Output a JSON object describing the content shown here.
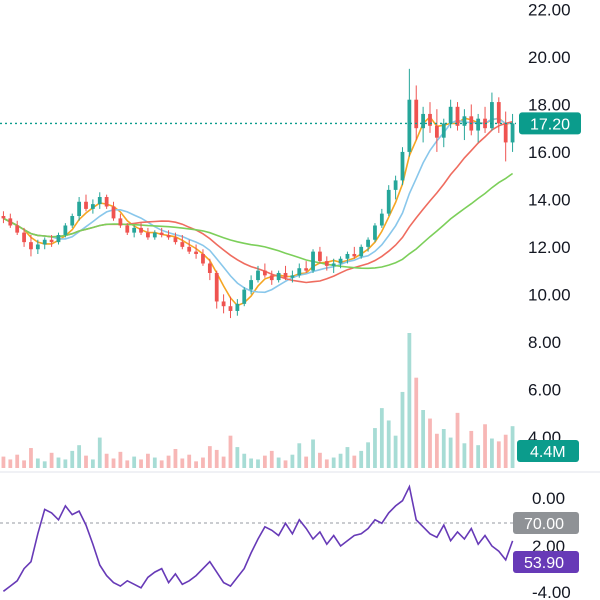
{
  "chart_data": [
    {
      "type": "candlestick",
      "panel": "price",
      "y_ticks": [
        "22.00",
        "20.00",
        "18.00",
        "16.00",
        "14.00",
        "12.00",
        "10.00",
        "8.00",
        "6.00",
        "4.00"
      ],
      "ylim": [
        2.6,
        22.4
      ],
      "last_price": 17.2,
      "last_price_label": "17.20",
      "price_line_style": "dotted",
      "up_color": "#26a69a",
      "down_color": "#ef5350",
      "candles": [
        [
          13.3,
          13.5,
          13.0,
          13.2
        ],
        [
          13.2,
          13.4,
          12.8,
          12.9
        ],
        [
          12.9,
          13.1,
          12.5,
          12.6
        ],
        [
          12.6,
          12.8,
          12.0,
          12.2
        ],
        [
          12.2,
          12.5,
          11.6,
          11.9
        ],
        [
          11.9,
          12.3,
          11.7,
          12.1
        ],
        [
          12.1,
          12.4,
          11.9,
          12.3
        ],
        [
          12.3,
          12.5,
          12.0,
          12.2
        ],
        [
          12.2,
          12.6,
          12.1,
          12.5
        ],
        [
          12.5,
          13.0,
          12.4,
          12.9
        ],
        [
          12.9,
          13.4,
          12.8,
          13.3
        ],
        [
          13.3,
          14.1,
          13.1,
          13.9
        ],
        [
          13.9,
          14.2,
          13.5,
          13.6
        ],
        [
          13.6,
          14.0,
          13.4,
          13.8
        ],
        [
          13.8,
          14.3,
          13.6,
          14.1
        ],
        [
          14.1,
          14.2,
          13.6,
          13.7
        ],
        [
          13.7,
          13.9,
          13.1,
          13.2
        ],
        [
          13.2,
          13.4,
          12.8,
          12.9
        ],
        [
          12.9,
          13.0,
          12.5,
          12.6
        ],
        [
          12.6,
          12.9,
          12.4,
          12.8
        ],
        [
          12.8,
          13.0,
          12.5,
          12.6
        ],
        [
          12.6,
          12.8,
          12.3,
          12.4
        ],
        [
          12.4,
          12.7,
          12.3,
          12.6
        ],
        [
          12.6,
          12.8,
          12.4,
          12.5
        ],
        [
          12.5,
          12.7,
          12.3,
          12.4
        ],
        [
          12.4,
          12.6,
          12.1,
          12.2
        ],
        [
          12.2,
          12.5,
          11.9,
          12.0
        ],
        [
          12.0,
          12.3,
          11.7,
          11.8
        ],
        [
          11.8,
          12.1,
          11.5,
          11.7
        ],
        [
          11.7,
          11.9,
          11.2,
          11.3
        ],
        [
          11.3,
          11.5,
          10.6,
          10.9
        ],
        [
          10.9,
          11.0,
          9.4,
          9.7
        ],
        [
          9.7,
          10.0,
          9.2,
          9.5
        ],
        [
          9.5,
          9.9,
          9.0,
          9.3
        ],
        [
          9.3,
          9.8,
          9.1,
          9.6
        ],
        [
          9.6,
          10.3,
          9.5,
          10.2
        ],
        [
          10.2,
          10.8,
          10.0,
          10.6
        ],
        [
          10.6,
          11.2,
          10.5,
          11.0
        ],
        [
          11.0,
          11.3,
          10.7,
          10.8
        ],
        [
          10.8,
          11.0,
          10.4,
          10.6
        ],
        [
          10.6,
          11.0,
          10.5,
          10.9
        ],
        [
          10.9,
          11.2,
          10.6,
          10.7
        ],
        [
          10.7,
          11.0,
          10.5,
          10.8
        ],
        [
          10.8,
          11.3,
          10.7,
          11.1
        ],
        [
          11.1,
          11.4,
          10.9,
          11.0
        ],
        [
          11.0,
          11.9,
          10.9,
          11.8
        ],
        [
          11.8,
          12.0,
          11.3,
          11.4
        ],
        [
          11.4,
          11.6,
          11.0,
          11.2
        ],
        [
          11.2,
          11.5,
          10.9,
          11.3
        ],
        [
          11.3,
          11.6,
          11.1,
          11.5
        ],
        [
          11.5,
          11.8,
          11.3,
          11.7
        ],
        [
          11.7,
          12.0,
          11.5,
          11.6
        ],
        [
          11.6,
          12.1,
          11.5,
          12.0
        ],
        [
          12.0,
          12.4,
          11.8,
          12.3
        ],
        [
          12.3,
          13.0,
          12.2,
          12.9
        ],
        [
          12.9,
          13.6,
          12.8,
          13.4
        ],
        [
          13.4,
          14.6,
          13.3,
          14.4
        ],
        [
          14.4,
          15.0,
          14.0,
          14.8
        ],
        [
          14.8,
          16.2,
          14.6,
          16.0
        ],
        [
          16.0,
          19.5,
          15.8,
          18.2
        ],
        [
          18.2,
          18.8,
          16.5,
          17.0
        ],
        [
          17.0,
          17.9,
          16.4,
          17.6
        ],
        [
          17.6,
          18.1,
          16.8,
          17.1
        ],
        [
          17.1,
          17.8,
          16.0,
          16.6
        ],
        [
          16.6,
          17.4,
          16.2,
          17.2
        ],
        [
          17.2,
          18.2,
          17.0,
          17.9
        ],
        [
          17.9,
          18.1,
          16.9,
          17.1
        ],
        [
          17.1,
          17.8,
          16.5,
          17.5
        ],
        [
          17.5,
          18.0,
          16.7,
          16.9
        ],
        [
          16.9,
          17.6,
          16.4,
          17.4
        ],
        [
          17.4,
          17.9,
          16.8,
          17.0
        ],
        [
          17.0,
          18.5,
          16.9,
          18.1
        ],
        [
          18.1,
          18.3,
          16.8,
          17.2
        ],
        [
          17.2,
          17.7,
          15.6,
          16.4
        ],
        [
          16.4,
          17.6,
          16.0,
          17.2
        ]
      ]
    },
    {
      "type": "bar",
      "panel": "volume",
      "last_value_label": "4.4M",
      "last_value_color": "#0b9c8c",
      "values_millions": [
        1.2,
        0.9,
        1.4,
        0.8,
        2.1,
        1.0,
        0.7,
        1.6,
        1.1,
        0.9,
        1.8,
        2.4,
        1.3,
        0.9,
        3.2,
        1.5,
        1.0,
        1.7,
        0.8,
        1.2,
        0.9,
        1.5,
        1.1,
        0.8,
        1.3,
        2.0,
        1.0,
        1.4,
        0.7,
        1.1,
        2.3,
        1.9,
        1.2,
        3.4,
        2.2,
        1.5,
        1.0,
        0.9,
        1.3,
        1.8,
        1.1,
        0.8,
        1.4,
        2.6,
        1.2,
        3.0,
        1.6,
        0.9,
        1.1,
        1.5,
        2.2,
        1.3,
        1.8,
        2.7,
        4.2,
        6.3,
        5.0,
        3.4,
        8.0,
        14.2,
        9.5,
        6.1,
        5.2,
        3.6,
        4.1,
        3.2,
        5.8,
        2.6,
        3.9,
        2.4,
        4.6,
        3.1,
        2.8,
        3.5,
        4.4
      ],
      "colors_up": "#a7dcd5",
      "colors_down": "#f7b7b6"
    },
    {
      "type": "line",
      "panel": "rsi",
      "y_ticks": [
        "0.00",
        "2.00",
        "-4.00"
      ],
      "level_label": "70.00",
      "last_value": 53.9,
      "last_value_label": "53.90",
      "line_color": "#673ab7",
      "values": [
        25,
        28,
        31,
        38,
        42,
        58,
        72,
        70,
        66,
        74,
        69,
        71,
        63,
        52,
        40,
        34,
        30,
        28,
        31,
        29,
        27,
        33,
        36,
        38,
        30,
        35,
        29,
        31,
        34,
        38,
        42,
        36,
        30,
        28,
        33,
        38,
        47,
        55,
        62,
        60,
        57,
        64,
        58,
        66,
        61,
        55,
        59,
        52,
        57,
        51,
        54,
        57,
        58,
        61,
        66,
        64,
        70,
        74,
        77,
        85,
        66,
        62,
        58,
        56,
        63,
        54,
        59,
        55,
        61,
        52,
        57,
        51,
        48,
        43,
        53.9
      ]
    }
  ]
}
